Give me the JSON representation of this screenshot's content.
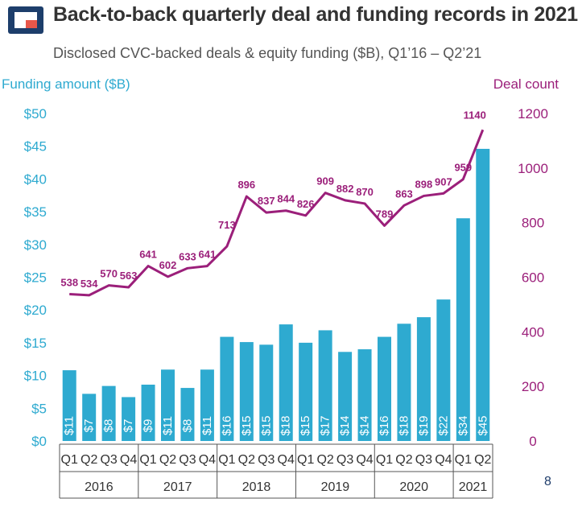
{
  "title": "Back-to-back quarterly deal and funding records in 2021",
  "subtitle": "Disclosed CVC-backed deals & equity funding ($B), Q1’16 – Q2’21",
  "page_number": "8",
  "colors": {
    "bar": "#2eaad0",
    "line": "#9b1f7a",
    "left_axis": "#2eaad0",
    "right_axis": "#9b1f7a",
    "logo_dark": "#1d3e6b",
    "logo_accent": "#e8574a"
  },
  "chart_data": {
    "type": "bar",
    "title": "Back-to-back quarterly deal and funding records in 2021",
    "subtitle": "Disclosed CVC-backed deals & equity funding ($B), Q1’16 – Q2’21",
    "ylabel": "Funding amount ($B)",
    "y2label": "Deal count",
    "ylim": [
      0,
      50
    ],
    "y2lim": [
      0,
      1200
    ],
    "yticks": [
      "$0",
      "$5",
      "$10",
      "$15",
      "$20",
      "$25",
      "$30",
      "$35",
      "$40",
      "$45",
      "$50"
    ],
    "y2ticks": [
      "0",
      "200",
      "400",
      "600",
      "800",
      "1000",
      "1200"
    ],
    "quarters": [
      "Q1",
      "Q2",
      "Q3",
      "Q4",
      "Q1",
      "Q2",
      "Q3",
      "Q4",
      "Q1",
      "Q2",
      "Q3",
      "Q4",
      "Q1",
      "Q2",
      "Q3",
      "Q4",
      "Q1",
      "Q2",
      "Q3",
      "Q4",
      "Q1",
      "Q2"
    ],
    "years": [
      {
        "label": "2016",
        "count": 4
      },
      {
        "label": "2017",
        "count": 4
      },
      {
        "label": "2018",
        "count": 4
      },
      {
        "label": "2019",
        "count": 4
      },
      {
        "label": "2020",
        "count": 4
      },
      {
        "label": "2021",
        "count": 2
      }
    ],
    "series": [
      {
        "type": "bar",
        "axis": "left",
        "values": [
          10.8,
          7.2,
          8.4,
          6.7,
          8.6,
          10.9,
          8.1,
          10.9,
          15.9,
          15.1,
          14.7,
          17.8,
          15.0,
          16.9,
          13.6,
          14.0,
          15.9,
          17.9,
          18.9,
          21.6,
          34.0,
          44.6
        ],
        "labels": [
          "$11",
          "$7",
          "$8",
          "$7",
          "$9",
          "$11",
          "$8",
          "$11",
          "$16",
          "$15",
          "$15",
          "$18",
          "$15",
          "$17",
          "$14",
          "$14",
          "$16",
          "$18",
          "$19",
          "$22",
          "$34",
          "$45"
        ]
      },
      {
        "type": "line",
        "axis": "right",
        "values": [
          538,
          534,
          570,
          563,
          641,
          602,
          633,
          641,
          713,
          896,
          837,
          844,
          826,
          909,
          882,
          870,
          789,
          863,
          898,
          907,
          959,
          1140
        ],
        "labels": [
          "538",
          "534",
          "570",
          "563",
          "641",
          "602",
          "633",
          "641",
          "713",
          "896",
          "837",
          "844",
          "826",
          "909",
          "882",
          "870",
          "789",
          "863",
          "898",
          "907",
          "959",
          "1140"
        ]
      }
    ],
    "grid": false,
    "legend": "none"
  }
}
